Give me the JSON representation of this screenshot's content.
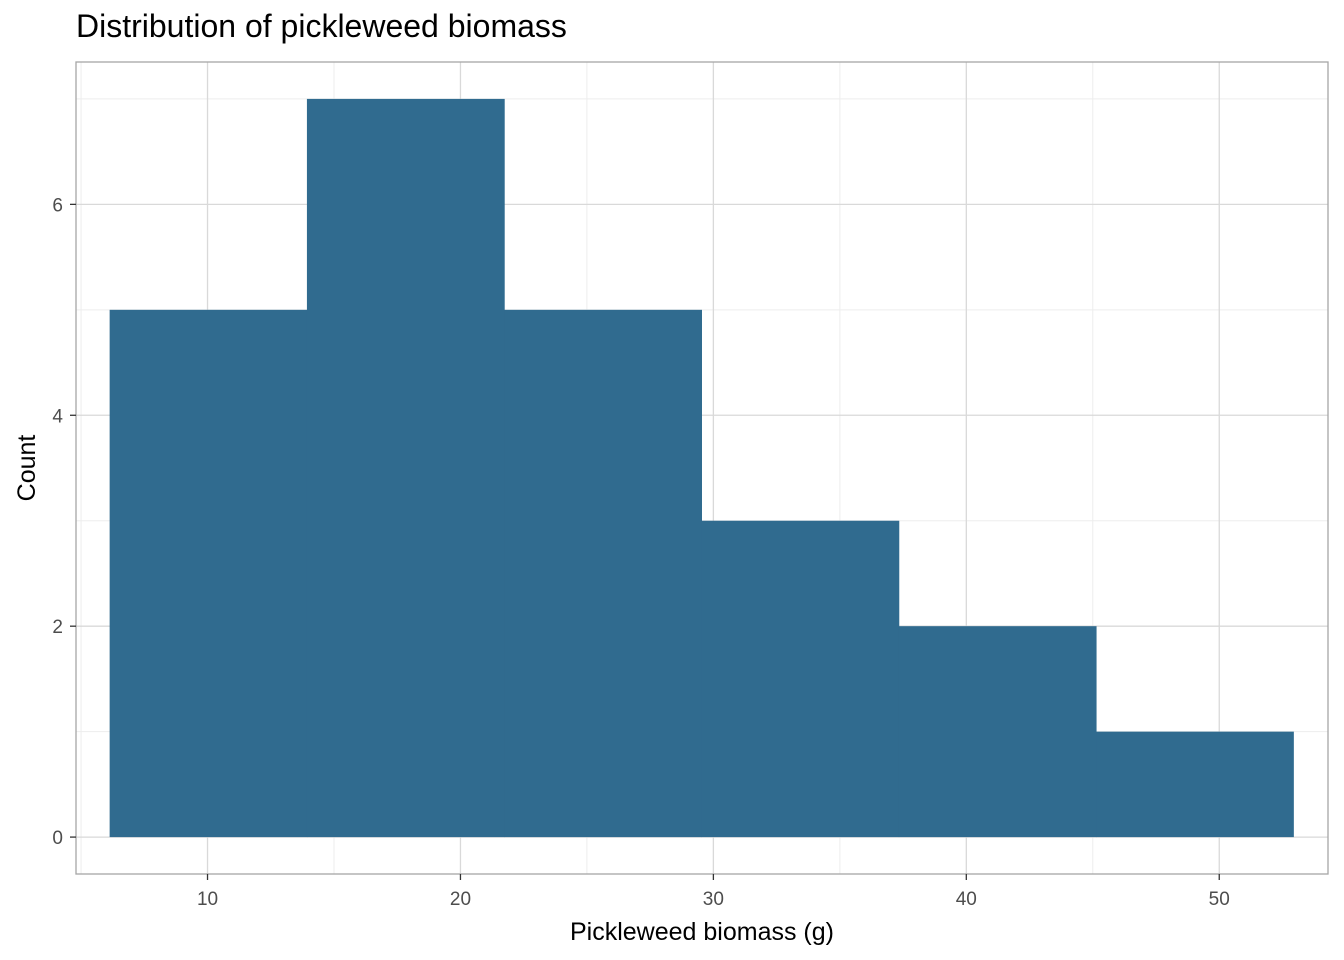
{
  "chart_data": {
    "type": "bar",
    "title": "Distribution of pickleweed biomass",
    "xlabel": "Pickleweed biomass (g)",
    "ylabel": "Count",
    "bins": [
      {
        "x0": 6.13,
        "x1": 13.93,
        "count": 5
      },
      {
        "x0": 13.93,
        "x1": 21.73,
        "count": 7
      },
      {
        "x0": 21.73,
        "x1": 29.53,
        "count": 5
      },
      {
        "x0": 29.53,
        "x1": 37.33,
        "count": 3
      },
      {
        "x0": 37.33,
        "x1": 45.13,
        "count": 2
      },
      {
        "x0": 45.13,
        "x1": 52.93,
        "count": 1
      }
    ],
    "xlim": [
      4.8,
      54.3
    ],
    "ylim": [
      -0.35,
      7.35
    ],
    "x_ticks": [
      10,
      20,
      30,
      40,
      50
    ],
    "x_tick_labels": [
      "10",
      "20",
      "30",
      "40",
      "50"
    ],
    "y_ticks": [
      0,
      2,
      4,
      6
    ],
    "y_tick_labels": [
      "0",
      "2",
      "4",
      "6"
    ],
    "grid": true,
    "colors": {
      "bar": "#306b8f",
      "grid_major": "#d9d9d9",
      "grid_minor": "#ededed",
      "panel_border": "#a6a6a6"
    }
  }
}
